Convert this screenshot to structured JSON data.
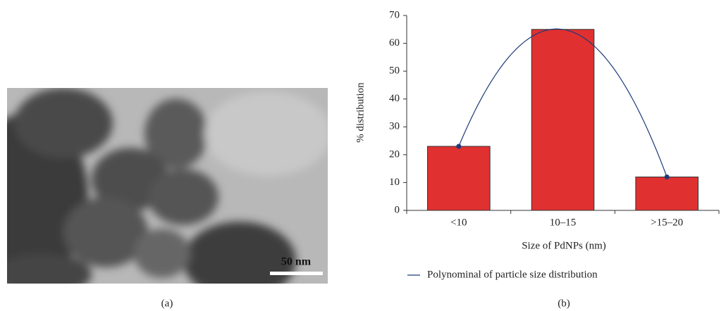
{
  "panel_a": {
    "label": "(a)",
    "scale_bar": "50 nm"
  },
  "panel_b": {
    "label": "(b)"
  },
  "chart_data": {
    "type": "bar",
    "x_label": "Size of PdNPs (nm)",
    "y_label": "% distribution",
    "categories": [
      "<10",
      "10–15",
      ">15–20"
    ],
    "values": [
      23,
      65,
      12
    ],
    "color": "#e03030",
    "trendline": {
      "name": "Polynominal of particle size distribution",
      "color": "#1f3a7a"
    },
    "ylim": [
      0,
      70
    ],
    "yticks": [
      0,
      10,
      20,
      30,
      40,
      50,
      60,
      70
    ]
  }
}
